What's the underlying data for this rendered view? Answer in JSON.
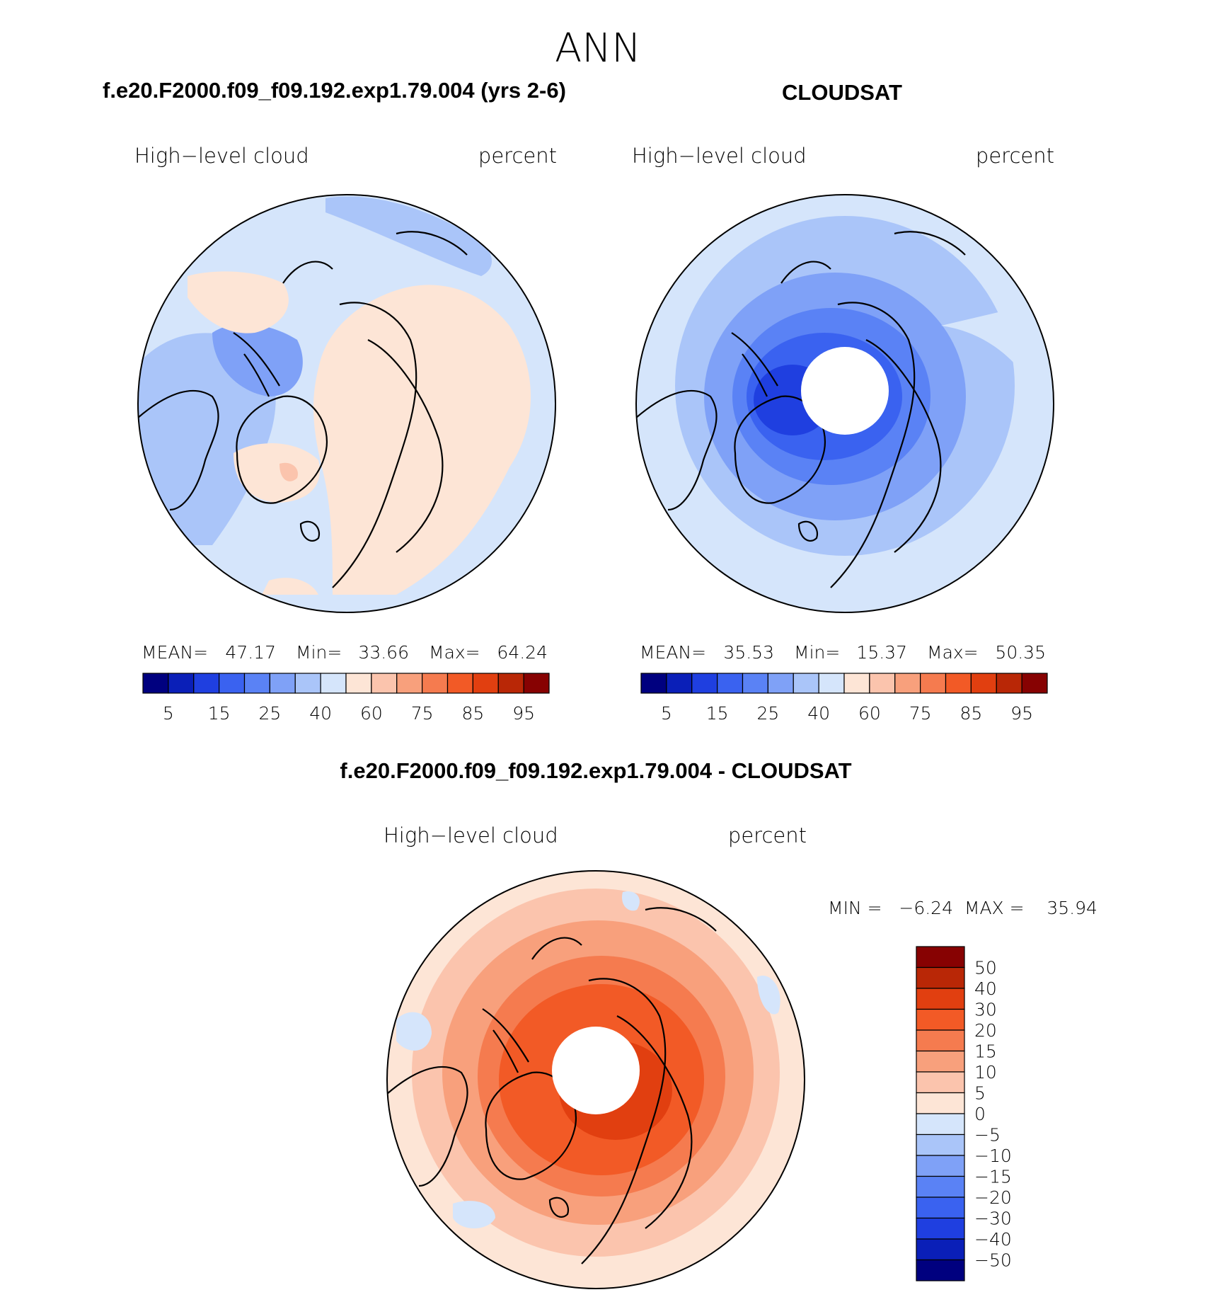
{
  "figure": {
    "title": "ANN"
  },
  "colors": {
    "abs_scale": [
      "#00007f",
      "#0a1fb8",
      "#1f3fe0",
      "#3a62f0",
      "#5a82f5",
      "#7fa1f7",
      "#aac5f9",
      "#d5e5fb",
      "#fde5d6",
      "#fbc4ad",
      "#f8a07c",
      "#f57b4f",
      "#f25a26",
      "#e13f10",
      "#b92706",
      "#870202"
    ],
    "diff_scale": [
      "#00007f",
      "#0a1fb8",
      "#1f3fe0",
      "#3a62f0",
      "#5a82f5",
      "#7fa1f7",
      "#aac5f9",
      "#d5e5fb",
      "#fde5d6",
      "#fbc4ad",
      "#f8a07c",
      "#f57b4f",
      "#f25a26",
      "#e13f10",
      "#b92706",
      "#870202"
    ],
    "coast": "#000000"
  },
  "panels": {
    "model": {
      "title": "f.e20.F2000.f09_f09.192.exp1.79.004 (yrs 2-6)",
      "left_label": "High−level cloud",
      "right_label": "percent",
      "stats": {
        "mean_label": "MEAN=",
        "mean": "47.17",
        "min_label": "Min=",
        "min": "33.66",
        "max_label": "Max=",
        "max": "64.24"
      }
    },
    "obs": {
      "title": "CLOUDSAT",
      "left_label": "High−level cloud",
      "right_label": "percent",
      "stats": {
        "mean_label": "MEAN=",
        "mean": "35.53",
        "min_label": "Min=",
        "min": "15.37",
        "max_label": "Max=",
        "max": "50.35"
      }
    },
    "diff": {
      "title": "f.e20.F2000.f09_f09.192.exp1.79.004 - CLOUDSAT",
      "left_label": "High−level cloud",
      "right_label": "percent",
      "minmax": "MIN =   −6.24  MAX =    35.94"
    }
  },
  "chart_data": [
    {
      "type": "heatmap",
      "title": "f.e20.F2000.f09_f09.192.exp1.79.004 (yrs 2-6)",
      "field": "High-level cloud",
      "units": "percent",
      "projection": "north polar stereographic",
      "contour_levels": [
        5,
        10,
        15,
        20,
        25,
        30,
        40,
        50,
        60,
        65,
        75,
        80,
        85,
        90,
        95
      ],
      "colorbar_tick_labels": [
        "5",
        "15",
        "25",
        "40",
        "60",
        "75",
        "85",
        "95"
      ],
      "mean": 47.17,
      "min": 33.66,
      "max": 64.24
    },
    {
      "type": "heatmap",
      "title": "CLOUDSAT",
      "field": "High-level cloud",
      "units": "percent",
      "projection": "north polar stereographic",
      "contour_levels": [
        5,
        10,
        15,
        20,
        25,
        30,
        40,
        50,
        60,
        65,
        75,
        80,
        85,
        90,
        95
      ],
      "colorbar_tick_labels": [
        "5",
        "15",
        "25",
        "40",
        "60",
        "75",
        "85",
        "95"
      ],
      "mean": 35.53,
      "min": 15.37,
      "max": 50.35
    },
    {
      "type": "heatmap",
      "title": "f.e20.F2000.f09_f09.192.exp1.79.004 - CLOUDSAT",
      "field": "High-level cloud",
      "units": "percent",
      "projection": "north polar stereographic",
      "contour_levels": [
        -50,
        -40,
        -30,
        -20,
        -15,
        -10,
        -5,
        0,
        5,
        10,
        15,
        20,
        30,
        40,
        50
      ],
      "colorbar_tick_labels": [
        "50",
        "40",
        "30",
        "20",
        "15",
        "10",
        "5",
        "0",
        "−5",
        "−10",
        "−15",
        "−20",
        "−30",
        "−40",
        "−50"
      ],
      "min": -6.24,
      "max": 35.94
    }
  ]
}
